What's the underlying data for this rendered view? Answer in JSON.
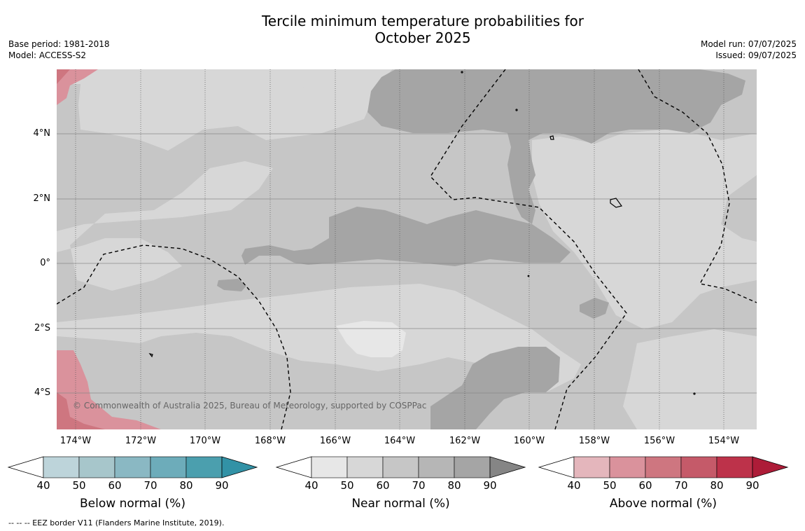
{
  "title_line1": "Tercile minimum temperature probabilities for",
  "title_line2": "October 2025",
  "meta_left": {
    "base_period": "Base period: 1981-2018",
    "model": "Model: ACCESS-S2"
  },
  "meta_right": {
    "model_run": "Model run: 07/07/2025",
    "issued": "Issued: 09/07/2025"
  },
  "copyright": "© Commonwealth of Australia 2025, Bureau of Meteorology, supported by COSPPac",
  "latitudes": [
    "4°N",
    "2°N",
    "0°",
    "2°S",
    "4°S"
  ],
  "longitudes": [
    "174°W",
    "172°W",
    "170°W",
    "168°W",
    "166°W",
    "164°W",
    "162°W",
    "160°W",
    "158°W",
    "156°W",
    "154°W"
  ],
  "colorbars": [
    {
      "title": "Below normal (%)",
      "ticks": [
        "40",
        "50",
        "60",
        "70",
        "80",
        "90"
      ],
      "colors": [
        "#bdd4da",
        "#a7c6cb",
        "#8ab8c3",
        "#6dacba",
        "#4b9fae"
      ],
      "max_color": "#3292a6"
    },
    {
      "title": "Near normal (%)",
      "ticks": [
        "40",
        "50",
        "60",
        "70",
        "80",
        "90"
      ],
      "colors": [
        "#e7e7e7",
        "#d7d7d7",
        "#c6c6c6",
        "#b6b6b6",
        "#a5a5a5"
      ],
      "max_color": "#858585"
    },
    {
      "title": "Above normal (%)",
      "ticks": [
        "40",
        "50",
        "60",
        "70",
        "80",
        "90"
      ],
      "colors": [
        "#e4b6bc",
        "#da929c",
        "#ce7680",
        "#c55a69",
        "#bd324a"
      ],
      "max_color": "#ad1c38"
    }
  ],
  "footnote": "--  --  -- EEZ border V11 (Flanders Marine Institute, 2019).",
  "colors": {
    "near_40": "#e7e7e7",
    "near_50": "#d7d7d7",
    "near_60": "#c6c6c6",
    "near_70": "#a5a5a5",
    "above_50": "#da929c",
    "above_60": "#ce7680"
  }
}
